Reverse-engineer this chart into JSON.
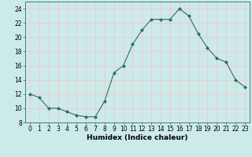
{
  "x": [
    0,
    1,
    2,
    3,
    4,
    5,
    6,
    7,
    8,
    9,
    10,
    11,
    12,
    13,
    14,
    15,
    16,
    17,
    18,
    19,
    20,
    21,
    22,
    23
  ],
  "y": [
    12,
    11.5,
    10,
    10,
    9.5,
    9,
    8.8,
    8.8,
    11,
    15,
    16,
    19,
    21,
    22.5,
    22.5,
    22.5,
    24,
    23,
    20.5,
    18.5,
    17,
    16.5,
    14,
    13
  ],
  "line_color": "#2e6e5e",
  "marker": "D",
  "marker_size": 2.0,
  "bg_color": "#cceaea",
  "grid_color": "#f0c8c8",
  "xlabel": "Humidex (Indice chaleur)",
  "xlim": [
    -0.5,
    23.5
  ],
  "ylim": [
    8,
    25
  ],
  "yticks": [
    8,
    10,
    12,
    14,
    16,
    18,
    20,
    22,
    24
  ],
  "xticks": [
    0,
    1,
    2,
    3,
    4,
    5,
    6,
    7,
    8,
    9,
    10,
    11,
    12,
    13,
    14,
    15,
    16,
    17,
    18,
    19,
    20,
    21,
    22,
    23
  ],
  "xlabel_fontsize": 6.5,
  "tick_fontsize": 5.5
}
